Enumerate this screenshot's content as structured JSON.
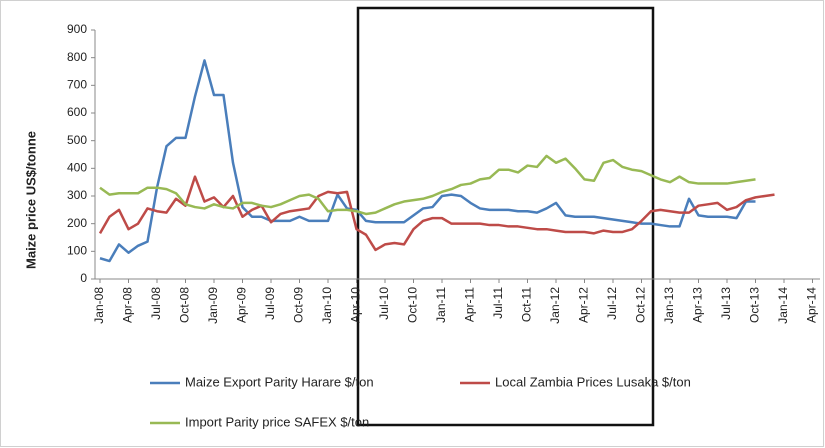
{
  "chart_data": {
    "type": "line",
    "y_label": "Maize price US$/tonne",
    "categories": [
      "Jan-08",
      null,
      null,
      "Apr-08",
      null,
      null,
      "Jul-08",
      null,
      null,
      "Oct-08",
      null,
      null,
      "Jan-09",
      null,
      null,
      "Apr-09",
      null,
      null,
      "Jul-09",
      null,
      null,
      "Oct-09",
      null,
      null,
      "Jan-10",
      null,
      null,
      "Apr-10",
      null,
      null,
      "Jul-10",
      null,
      null,
      "Oct-10",
      null,
      null,
      "Jan-11",
      null,
      null,
      "Apr-11",
      null,
      null,
      "Jul-11",
      null,
      null,
      "Oct-11",
      null,
      null,
      "Jan-12",
      null,
      null,
      "Apr-12",
      null,
      null,
      "Jul-12",
      null,
      null,
      "Oct-12",
      null,
      null,
      "Jan-13",
      null,
      null,
      "Apr-13",
      null,
      null,
      "Jul-13",
      null,
      null,
      "Oct-13",
      null,
      null,
      "Jan-14",
      null,
      null,
      "Apr-14"
    ],
    "series": [
      {
        "name": "Maize Export Parity Harare $/ton",
        "color": "#4a7ebb",
        "values": [
          75,
          65,
          125,
          95,
          120,
          135,
          330,
          480,
          510,
          510,
          660,
          790,
          665,
          665,
          420,
          260,
          225,
          225,
          210,
          210,
          210,
          225,
          210,
          210,
          210,
          305,
          255,
          250,
          210,
          205,
          205,
          205,
          205,
          230,
          255,
          260,
          300,
          305,
          300,
          275,
          255,
          250,
          250,
          250,
          245,
          245,
          240,
          255,
          275,
          230,
          225,
          225,
          225,
          220,
          215,
          210,
          205,
          200,
          200,
          195,
          190,
          190,
          290,
          230,
          225,
          225,
          225,
          220,
          280,
          280,
          null,
          null,
          null,
          null,
          null,
          null
        ]
      },
      {
        "name": "Local Zambia Prices Lusaka $/ton",
        "color": "#be4b48",
        "values": [
          165,
          225,
          250,
          180,
          200,
          255,
          245,
          240,
          290,
          265,
          370,
          280,
          295,
          260,
          300,
          225,
          250,
          265,
          205,
          235,
          245,
          250,
          255,
          300,
          315,
          310,
          315,
          180,
          160,
          105,
          125,
          130,
          125,
          180,
          210,
          220,
          220,
          200,
          200,
          200,
          200,
          195,
          195,
          190,
          190,
          185,
          180,
          180,
          175,
          170,
          170,
          170,
          165,
          175,
          170,
          170,
          180,
          210,
          245,
          250,
          245,
          240,
          240,
          265,
          270,
          275,
          250,
          260,
          285,
          295,
          300,
          305,
          null,
          null,
          null,
          null
        ]
      },
      {
        "name": "Import Parity price SAFEX $/ton",
        "color": "#98b954",
        "values": [
          330,
          305,
          310,
          310,
          310,
          330,
          330,
          325,
          310,
          270,
          260,
          255,
          270,
          260,
          255,
          275,
          275,
          265,
          260,
          270,
          285,
          300,
          305,
          290,
          245,
          250,
          250,
          245,
          235,
          240,
          255,
          270,
          280,
          285,
          290,
          300,
          315,
          325,
          340,
          345,
          360,
          365,
          395,
          395,
          385,
          410,
          405,
          445,
          420,
          435,
          400,
          360,
          355,
          420,
          430,
          405,
          395,
          390,
          375,
          360,
          350,
          370,
          350,
          345,
          345,
          345,
          345,
          350,
          355,
          360,
          null,
          null,
          null,
          null,
          null,
          null
        ]
      }
    ],
    "ylim": [
      0,
      900
    ],
    "yticks": [
      0,
      100,
      200,
      300,
      400,
      500,
      600,
      700,
      800,
      900
    ],
    "legend": "bottom"
  }
}
